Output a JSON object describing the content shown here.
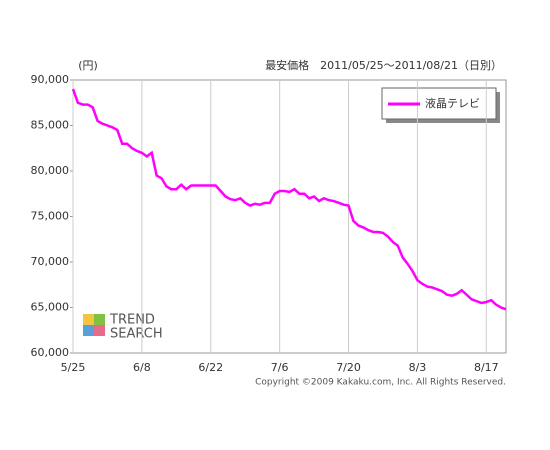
{
  "chart_data": {
    "type": "line",
    "title": "最安価格　2011/05/25〜2011/08/21（日別）",
    "unit_label": "(円)",
    "copyright": "Copyright ©2009 Kakaku.com, Inc. All Rights Reserved.",
    "logo": [
      "TREND",
      "SEARCH"
    ],
    "x": [
      "5/25",
      "5/26",
      "5/27",
      "5/28",
      "5/29",
      "5/30",
      "5/31",
      "6/1",
      "6/2",
      "6/3",
      "6/4",
      "6/5",
      "6/6",
      "6/7",
      "6/8",
      "6/9",
      "6/10",
      "6/11",
      "6/12",
      "6/13",
      "6/14",
      "6/15",
      "6/16",
      "6/17",
      "6/18",
      "6/19",
      "6/20",
      "6/21",
      "6/22",
      "6/23",
      "6/24",
      "6/25",
      "6/26",
      "6/27",
      "6/28",
      "6/29",
      "6/30",
      "7/1",
      "7/2",
      "7/3",
      "7/4",
      "7/5",
      "7/6",
      "7/7",
      "7/8",
      "7/9",
      "7/10",
      "7/11",
      "7/12",
      "7/13",
      "7/14",
      "7/15",
      "7/16",
      "7/17",
      "7/18",
      "7/19",
      "7/20",
      "7/21",
      "7/22",
      "7/23",
      "7/24",
      "7/25",
      "7/26",
      "7/27",
      "7/28",
      "7/29",
      "7/30",
      "7/31",
      "8/1",
      "8/2",
      "8/3",
      "8/4",
      "8/5",
      "8/6",
      "8/7",
      "8/8",
      "8/9",
      "8/10",
      "8/11",
      "8/12",
      "8/13",
      "8/14",
      "8/15",
      "8/16",
      "8/17",
      "8/18",
      "8/19",
      "8/20",
      "8/21"
    ],
    "series": [
      {
        "name": "液晶テレビ",
        "color": "#ff00ff",
        "values": [
          89000,
          87500,
          87300,
          87300,
          87000,
          85500,
          85200,
          85000,
          84800,
          84500,
          83000,
          83000,
          82500,
          82200,
          82000,
          81600,
          82000,
          79500,
          79200,
          78300,
          78000,
          78000,
          78500,
          78000,
          78400,
          78400,
          78400,
          78400,
          78400,
          78400,
          77800,
          77200,
          76900,
          76800,
          77000,
          76500,
          76200,
          76400,
          76300,
          76500,
          76500,
          77500,
          77800,
          77800,
          77700,
          78000,
          77500,
          77500,
          77000,
          77200,
          76700,
          77000,
          76800,
          76700,
          76500,
          76300,
          76200,
          74500,
          74000,
          73800,
          73500,
          73300,
          73300,
          73200,
          72800,
          72200,
          71800,
          70500,
          69800,
          69000,
          68000,
          67600,
          67300,
          67200,
          67000,
          66800,
          66400,
          66300,
          66500,
          66900,
          66400,
          65900,
          65700,
          65500,
          65600,
          65800,
          65300,
          65000,
          64800
        ]
      }
    ],
    "xticks": [
      "5/25",
      "6/8",
      "6/22",
      "7/6",
      "7/20",
      "8/3",
      "8/17"
    ],
    "ylim": [
      60000,
      90000
    ],
    "yticks": [
      {
        "value": 60000,
        "label": "60,000"
      },
      {
        "value": 65000,
        "label": "65,000"
      },
      {
        "value": 70000,
        "label": "70,000"
      },
      {
        "value": 75000,
        "label": "75,000"
      },
      {
        "value": 80000,
        "label": "80,000"
      },
      {
        "value": 85000,
        "label": "85,000"
      },
      {
        "value": 90000,
        "label": "90,000"
      }
    ],
    "grid": "x"
  }
}
